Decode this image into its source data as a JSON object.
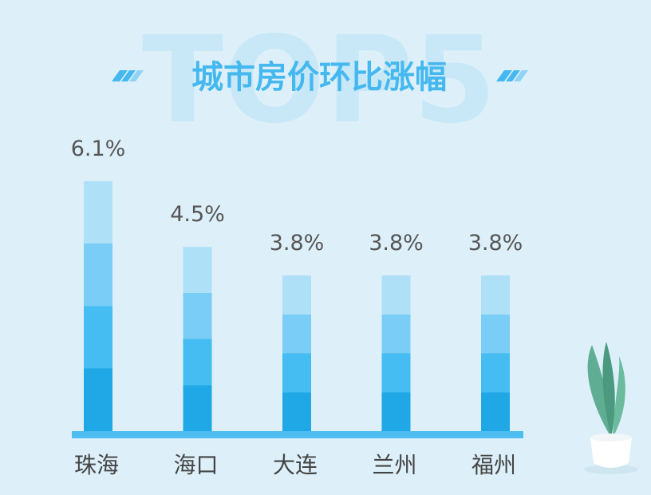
{
  "chart_data": {
    "type": "bar",
    "title": "城市房价环比涨幅",
    "watermark": "TOP5",
    "categories": [
      "珠海",
      "海口",
      "大连",
      "兰州",
      "福州"
    ],
    "values": [
      6.1,
      4.5,
      3.8,
      3.8,
      3.8
    ],
    "value_labels": [
      "6.1%",
      "4.5%",
      "3.8%",
      "3.8%",
      "3.8%"
    ],
    "band_colors": [
      "#aee0f7",
      "#79cdf7",
      "#45bdf2",
      "#20a8e6"
    ]
  }
}
